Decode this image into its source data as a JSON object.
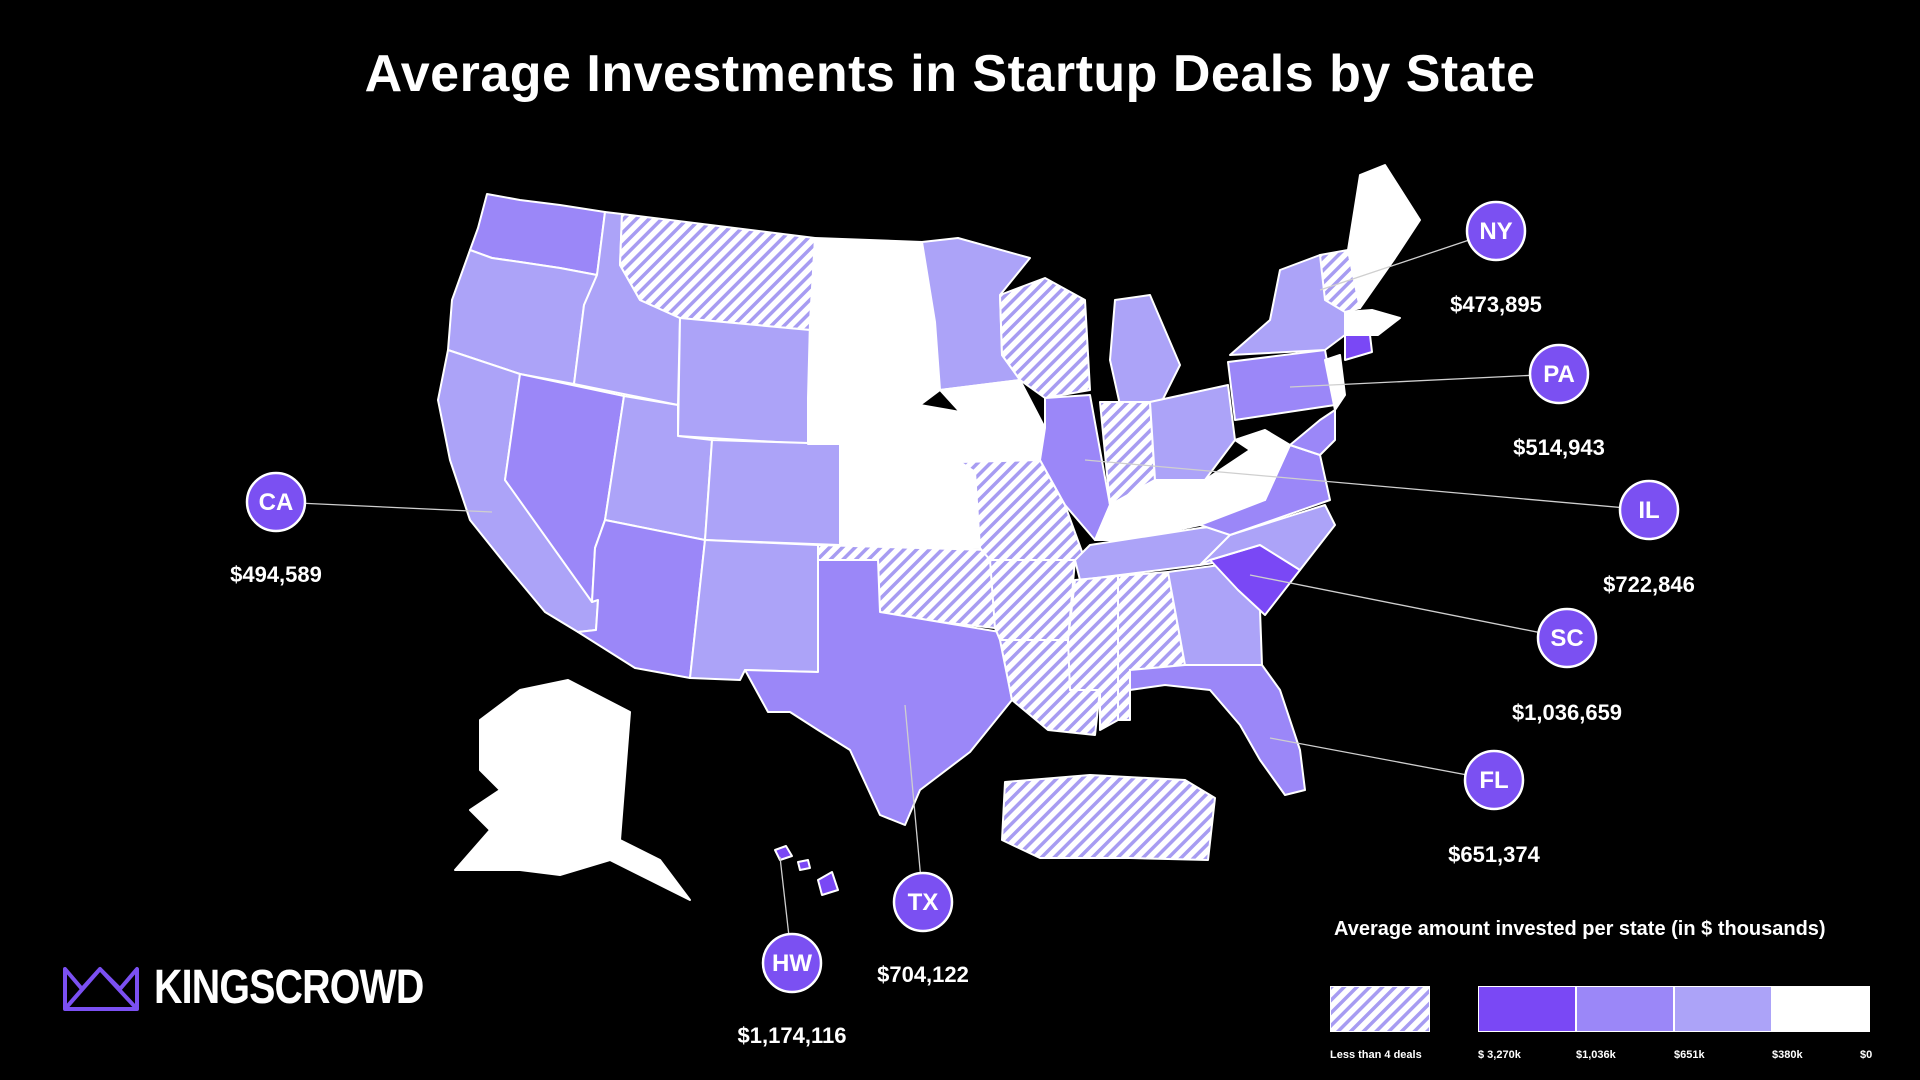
{
  "title": "Average Investments in Startup Deals by State",
  "colors": {
    "background": "#000000",
    "tier_3270k": "#7a48f5",
    "tier_1036k": "#9b87f8",
    "tier_651k": "#aca3f8",
    "tier_380k": "#ffffff",
    "hatch": "#a79cf2",
    "callout": "#7b50f2"
  },
  "callouts": [
    {
      "abbr": "NY",
      "value": "$473,895"
    },
    {
      "abbr": "PA",
      "value": "$514,943"
    },
    {
      "abbr": "CA",
      "value": "$494,589"
    },
    {
      "abbr": "IL",
      "value": "$722,846"
    },
    {
      "abbr": "SC",
      "value": "$1,036,659"
    },
    {
      "abbr": "FL",
      "value": "$651,374"
    },
    {
      "abbr": "TX",
      "value": "$704,122"
    },
    {
      "abbr": "HW",
      "value": "$1,174,116"
    }
  ],
  "logo": {
    "text": "KINGSCROWD",
    "icon": "crown-icon"
  },
  "legend": {
    "title": "Average amount invested per state (in $ thousands)",
    "hatch_label": "Less than 4 deals",
    "ticks": [
      "$ 3,270k",
      "$1,036k",
      "$651k",
      "$380k",
      "$0"
    ]
  }
}
